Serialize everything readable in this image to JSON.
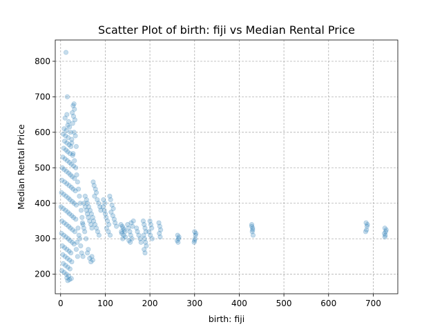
{
  "chart_data": {
    "type": "scatter",
    "title": "Scatter Plot of birth: fiji vs Median Rental Price",
    "xlabel": "birth: fiji",
    "ylabel": "Median Rental Price",
    "xlim": [
      -12,
      755
    ],
    "ylim": [
      145,
      860
    ],
    "xticks": [
      0,
      100,
      200,
      300,
      400,
      500,
      600,
      700
    ],
    "yticks": [
      200,
      300,
      400,
      500,
      600,
      700,
      800
    ],
    "grid": true,
    "marker_color": "#1f77b4",
    "marker_alpha": 0.25,
    "points": [
      [
        12,
        825
      ],
      [
        15,
        700
      ],
      [
        14,
        650
      ],
      [
        10,
        640
      ],
      [
        18,
        630
      ],
      [
        16,
        620
      ],
      [
        20,
        615
      ],
      [
        8,
        610
      ],
      [
        13,
        605
      ],
      [
        22,
        600
      ],
      [
        6,
        595
      ],
      [
        11,
        590
      ],
      [
        17,
        585
      ],
      [
        25,
        580
      ],
      [
        9,
        575
      ],
      [
        14,
        570
      ],
      [
        19,
        565
      ],
      [
        23,
        560
      ],
      [
        7,
        555
      ],
      [
        12,
        550
      ],
      [
        16,
        545
      ],
      [
        21,
        540
      ],
      [
        27,
        535
      ],
      [
        5,
        530
      ],
      [
        10,
        525
      ],
      [
        15,
        520
      ],
      [
        20,
        515
      ],
      [
        24,
        510
      ],
      [
        29,
        505
      ],
      [
        4,
        500
      ],
      [
        8,
        495
      ],
      [
        13,
        490
      ],
      [
        18,
        485
      ],
      [
        22,
        480
      ],
      [
        26,
        475
      ],
      [
        31,
        470
      ],
      [
        3,
        465
      ],
      [
        9,
        460
      ],
      [
        14,
        455
      ],
      [
        19,
        450
      ],
      [
        24,
        445
      ],
      [
        28,
        440
      ],
      [
        33,
        435
      ],
      [
        2,
        430
      ],
      [
        7,
        425
      ],
      [
        12,
        420
      ],
      [
        17,
        415
      ],
      [
        21,
        410
      ],
      [
        26,
        405
      ],
      [
        30,
        400
      ],
      [
        35,
        395
      ],
      [
        1,
        390
      ],
      [
        6,
        385
      ],
      [
        11,
        380
      ],
      [
        16,
        375
      ],
      [
        20,
        370
      ],
      [
        25,
        365
      ],
      [
        29,
        360
      ],
      [
        34,
        355
      ],
      [
        3,
        350
      ],
      [
        8,
        345
      ],
      [
        13,
        340
      ],
      [
        18,
        335
      ],
      [
        22,
        330
      ],
      [
        27,
        325
      ],
      [
        32,
        320
      ],
      [
        2,
        315
      ],
      [
        7,
        310
      ],
      [
        12,
        305
      ],
      [
        17,
        300
      ],
      [
        21,
        295
      ],
      [
        26,
        290
      ],
      [
        30,
        285
      ],
      [
        4,
        280
      ],
      [
        9,
        275
      ],
      [
        14,
        270
      ],
      [
        19,
        265
      ],
      [
        23,
        260
      ],
      [
        5,
        255
      ],
      [
        10,
        250
      ],
      [
        15,
        245
      ],
      [
        20,
        240
      ],
      [
        25,
        235
      ],
      [
        6,
        230
      ],
      [
        11,
        225
      ],
      [
        16,
        220
      ],
      [
        21,
        215
      ],
      [
        3,
        210
      ],
      [
        8,
        205
      ],
      [
        13,
        200
      ],
      [
        18,
        195
      ],
      [
        14,
        190
      ],
      [
        20,
        185
      ],
      [
        16,
        182
      ],
      [
        24,
        188
      ],
      [
        30,
        680
      ],
      [
        28,
        675
      ],
      [
        31,
        665
      ],
      [
        26,
        655
      ],
      [
        29,
        645
      ],
      [
        32,
        635
      ],
      [
        27,
        625
      ],
      [
        30,
        600
      ],
      [
        33,
        590
      ],
      [
        25,
        570
      ],
      [
        35,
        560
      ],
      [
        28,
        540
      ],
      [
        31,
        520
      ],
      [
        34,
        500
      ],
      [
        36,
        480
      ],
      [
        38,
        460
      ],
      [
        40,
        440
      ],
      [
        42,
        420
      ],
      [
        44,
        400
      ],
      [
        46,
        380
      ],
      [
        48,
        360
      ],
      [
        50,
        340
      ],
      [
        39,
        330
      ],
      [
        41,
        310
      ],
      [
        43,
        300
      ],
      [
        37,
        290
      ],
      [
        45,
        280
      ],
      [
        35,
        270
      ],
      [
        47,
        260
      ],
      [
        38,
        250
      ],
      [
        50,
        250
      ],
      [
        52,
        400
      ],
      [
        55,
        390
      ],
      [
        58,
        380
      ],
      [
        60,
        370
      ],
      [
        62,
        360
      ],
      [
        65,
        350
      ],
      [
        68,
        340
      ],
      [
        70,
        330
      ],
      [
        55,
        420
      ],
      [
        58,
        410
      ],
      [
        60,
        400
      ],
      [
        63,
        390
      ],
      [
        66,
        380
      ],
      [
        69,
        370
      ],
      [
        72,
        360
      ],
      [
        75,
        450
      ],
      [
        78,
        440
      ],
      [
        80,
        430
      ],
      [
        73,
        460
      ],
      [
        76,
        420
      ],
      [
        82,
        410
      ],
      [
        85,
        400
      ],
      [
        88,
        390
      ],
      [
        90,
        380
      ],
      [
        74,
        350
      ],
      [
        77,
        340
      ],
      [
        80,
        330
      ],
      [
        83,
        320
      ],
      [
        86,
        310
      ],
      [
        65,
        245
      ],
      [
        68,
        235
      ],
      [
        70,
        250
      ],
      [
        72,
        240
      ],
      [
        60,
        260
      ],
      [
        62,
        270
      ],
      [
        57,
        300
      ],
      [
        54,
        320
      ],
      [
        52,
        330
      ],
      [
        49,
        345
      ],
      [
        95,
        390
      ],
      [
        98,
        380
      ],
      [
        100,
        370
      ],
      [
        102,
        360
      ],
      [
        105,
        350
      ],
      [
        108,
        340
      ],
      [
        96,
        410
      ],
      [
        99,
        400
      ],
      [
        110,
        420
      ],
      [
        112,
        410
      ],
      [
        115,
        395
      ],
      [
        118,
        385
      ],
      [
        113,
        375
      ],
      [
        117,
        365
      ],
      [
        120,
        355
      ],
      [
        122,
        345
      ],
      [
        125,
        335
      ],
      [
        103,
        330
      ],
      [
        107,
        320
      ],
      [
        111,
        310
      ],
      [
        135,
        340
      ],
      [
        138,
        335
      ],
      [
        140,
        330
      ],
      [
        142,
        325
      ],
      [
        144,
        320
      ],
      [
        137,
        315
      ],
      [
        141,
        310
      ],
      [
        145,
        305
      ],
      [
        139,
        300
      ],
      [
        136,
        320
      ],
      [
        150,
        340
      ],
      [
        152,
        330
      ],
      [
        155,
        320
      ],
      [
        157,
        310
      ],
      [
        160,
        300
      ],
      [
        153,
        295
      ],
      [
        156,
        290
      ],
      [
        158,
        345
      ],
      [
        161,
        335
      ],
      [
        163,
        350
      ],
      [
        170,
        330
      ],
      [
        172,
        320
      ],
      [
        175,
        310
      ],
      [
        178,
        300
      ],
      [
        180,
        290
      ],
      [
        185,
        350
      ],
      [
        187,
        340
      ],
      [
        189,
        330
      ],
      [
        191,
        320
      ],
      [
        186,
        310
      ],
      [
        188,
        300
      ],
      [
        190,
        290
      ],
      [
        192,
        280
      ],
      [
        187,
        270
      ],
      [
        189,
        260
      ],
      [
        200,
        350
      ],
      [
        202,
        340
      ],
      [
        204,
        330
      ],
      [
        198,
        320
      ],
      [
        201,
        310
      ],
      [
        205,
        300
      ],
      [
        220,
        345
      ],
      [
        222,
        335
      ],
      [
        224,
        325
      ],
      [
        221,
        315
      ],
      [
        223,
        305
      ],
      [
        262,
        310
      ],
      [
        264,
        300
      ],
      [
        263,
        290
      ],
      [
        265,
        305
      ],
      [
        261,
        295
      ],
      [
        300,
        320
      ],
      [
        302,
        310
      ],
      [
        301,
        300
      ],
      [
        299,
        290
      ],
      [
        303,
        315
      ],
      [
        300,
        295
      ],
      [
        428,
        340
      ],
      [
        430,
        330
      ],
      [
        429,
        320
      ],
      [
        431,
        310
      ],
      [
        428,
        335
      ],
      [
        430,
        325
      ],
      [
        684,
        345
      ],
      [
        686,
        335
      ],
      [
        685,
        325
      ],
      [
        683,
        320
      ],
      [
        687,
        340
      ],
      [
        726,
        330
      ],
      [
        728,
        320
      ],
      [
        727,
        310
      ],
      [
        725,
        315
      ],
      [
        729,
        325
      ],
      [
        726,
        305
      ]
    ]
  }
}
